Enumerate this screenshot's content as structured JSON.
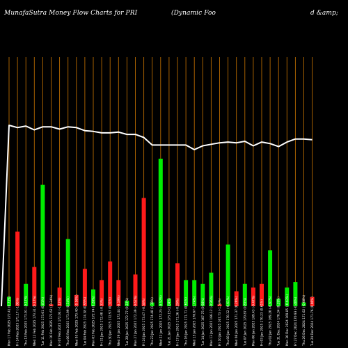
{
  "header": {
    "left": "MunafaSutra  Money Flow  Charts for PRI",
    "middle": "(Dynamic Foo",
    "right": "d &amp;"
  },
  "colors": {
    "background": "#000000",
    "gridline": "#b86a00",
    "positive": "#00ee00",
    "negative": "#ff1a1a",
    "price_line": "#ffffff",
    "label": "#ffffff"
  },
  "chart_data": {
    "type": "bar",
    "title": "MunafaSutra  Money Flow  Charts for PRI",
    "xlabel": "",
    "ylabel": "",
    "grid": true,
    "categories": [
      "Mon 17 Feb 2025 172.41 (0.73%)",
      "Fri 14 Feb 2025 171.17 (-1.06%)",
      "Thu 13 Feb 2025 173.01 (-0.17%)",
      "Wed 12 Feb 2025 173.31 (0.17%)",
      "Tue 11 Feb 2025 173.01 (0.81%)",
      "Mon 10 Feb 2025 171.62 (-0.24%)",
      "Fri 07 Feb 2025 172.04 (-1.12%)",
      "Thu 06 Feb 2025 173.99 (0.34%)",
      "Wed 05 Feb 2025 173.40 (-0.56%)",
      "Tue 04 Feb 2025 174.38 (0.95%)",
      "Mon 03 Feb 2025 172.74 (0.20%)",
      "Fri 31 Jan 2025 172.40 (-0.33%)",
      "Thu 30 Jan 2025 172.97 (0.31%)",
      "Wed 29 Jan 2025 172.44 (-0.19%)",
      "Tue 28 Jan 2025 172.77 (0.22%)",
      "Mon 27 Jan 2025 172.39 (-0.62%)",
      "Fri 24 Jan 2025 173.47 (-0.58%)",
      "Thu 23 Jan 2025 174.48 (1.30%)",
      "Wed 22 Jan 2025 172.25 (-0.52%)",
      "Tue 21 Jan 2025 173.15 (1.04%)",
      "Fri 17 Jan 2025 171.36 (-0.20%)",
      "Thu 16 Jan 2025 171.71 (0.61%)",
      "Wed 15 Jan 2025 170.67 (1.74%)",
      "Tue 14 Jan 2025 167.75 (0.98%)",
      "Mon 13 Jan 2025 166.12 (-0.96%)",
      "Fri 10 Jan 2025 167.73 (-1.52%)",
      "Thu 08 Jan 2025 170.32 (-0.61%)",
      "Wed 08 Jan 2025 171.37 (0.29%)",
      "Tue 07 Jan 2025 170.87 (0.85%)",
      "Mon 06 Jan 2025 169.43 (-0.47%)",
      "Fri 03 Jan 2025 170.23 (0.61%)",
      "Thu 02 Jan 2025 169.20 (-0.67%)",
      "Tue 31 Dec 2024 170.34 (0.29%)",
      "Mon 30 Dec 2024 169.85 (-0.63%)",
      "Fri 27 Dec 2024 170.93 (-0.40%)",
      "Thu 26 Dec 2024 171.62 (-0.08%)",
      "Tue 24 Dec 2024 171.76 (0.06%)"
    ],
    "series": [
      {
        "values": [
          5,
          40,
          12,
          21,
          65,
          1,
          10,
          36,
          6,
          20,
          9,
          14,
          24,
          14,
          3,
          17,
          58,
          2,
          79,
          4,
          23,
          14,
          14,
          12,
          18,
          1,
          33,
          8,
          12,
          10,
          12,
          30,
          4,
          10,
          13,
          2,
          5
        ],
        "direction": [
          "up",
          "down",
          "up",
          "down",
          "up",
          "down",
          "down",
          "up",
          "down",
          "down",
          "up",
          "down",
          "down",
          "down",
          "up",
          "down",
          "down",
          "up",
          "up",
          "up",
          "down",
          "up",
          "up",
          "up",
          "up",
          "down",
          "up",
          "down",
          "up",
          "down",
          "down",
          "up",
          "up",
          "up",
          "up",
          "up",
          "down"
        ]
      },
      {
        "type": "line",
        "values": [
          172.41,
          171.17,
          173.01,
          173.31,
          173.01,
          171.62,
          172.04,
          173.99,
          173.4,
          174.38,
          172.74,
          172.4,
          172.97,
          172.44,
          172.77,
          172.39,
          173.47,
          174.48,
          172.25,
          173.15,
          171.36,
          171.71,
          170.67,
          167.75,
          166.12,
          167.73,
          170.32,
          171.37,
          170.87,
          169.43,
          170.23,
          169.2,
          170.34,
          169.85,
          170.93,
          171.62,
          171.76
        ],
        "display": [
          86,
          83,
          85,
          80,
          84,
          84,
          81,
          84,
          83,
          79,
          78,
          76,
          76,
          77,
          74,
          74,
          70,
          60,
          60,
          60,
          60,
          60,
          54,
          59,
          61,
          63,
          64,
          63,
          65,
          59,
          64,
          62,
          58,
          64,
          68,
          68,
          67
        ],
        "lead_in": [
          0,
          86
        ]
      }
    ]
  }
}
